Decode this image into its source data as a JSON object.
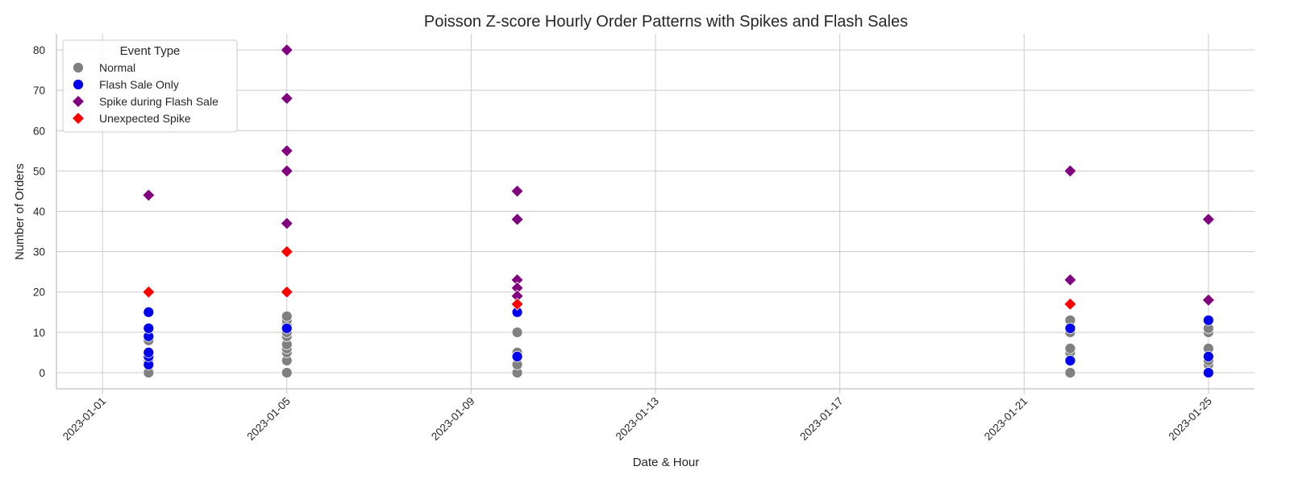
{
  "chart_data": {
    "type": "scatter",
    "title": "Poisson Z-score Hourly Order Patterns with Spikes and Flash Sales",
    "xlabel": "Date & Hour",
    "ylabel": "Number of Orders",
    "x_ticks": [
      "2023-01-01",
      "2023-01-05",
      "2023-01-09",
      "2023-01-13",
      "2023-01-17",
      "2023-01-21",
      "2023-01-25"
    ],
    "y_ticks": [
      0,
      10,
      20,
      30,
      40,
      50,
      60,
      70,
      80
    ],
    "xlim": [
      "2022-12-31",
      "2023-01-26"
    ],
    "ylim": [
      -4,
      84
    ],
    "grid": true,
    "legend": {
      "title": "Event Type",
      "placement": "top-left"
    },
    "series": [
      {
        "name": "Normal",
        "marker": "circle",
        "color": "#808080",
        "points": [
          {
            "x": "2023-01-02",
            "y": 0
          },
          {
            "x": "2023-01-02",
            "y": 3
          },
          {
            "x": "2023-01-02",
            "y": 8
          },
          {
            "x": "2023-01-05",
            "y": 0
          },
          {
            "x": "2023-01-05",
            "y": 3
          },
          {
            "x": "2023-01-05",
            "y": 5
          },
          {
            "x": "2023-01-05",
            "y": 6
          },
          {
            "x": "2023-01-05",
            "y": 7
          },
          {
            "x": "2023-01-05",
            "y": 9
          },
          {
            "x": "2023-01-05",
            "y": 10
          },
          {
            "x": "2023-01-05",
            "y": 12
          },
          {
            "x": "2023-01-05",
            "y": 13
          },
          {
            "x": "2023-01-05",
            "y": 14
          },
          {
            "x": "2023-01-10",
            "y": 0
          },
          {
            "x": "2023-01-10",
            "y": 2
          },
          {
            "x": "2023-01-10",
            "y": 4
          },
          {
            "x": "2023-01-10",
            "y": 5
          },
          {
            "x": "2023-01-10",
            "y": 10
          },
          {
            "x": "2023-01-22",
            "y": 0
          },
          {
            "x": "2023-01-22",
            "y": 5
          },
          {
            "x": "2023-01-22",
            "y": 6
          },
          {
            "x": "2023-01-22",
            "y": 10
          },
          {
            "x": "2023-01-22",
            "y": 13
          },
          {
            "x": "2023-01-25",
            "y": 2
          },
          {
            "x": "2023-01-25",
            "y": 3
          },
          {
            "x": "2023-01-25",
            "y": 6
          },
          {
            "x": "2023-01-25",
            "y": 10
          },
          {
            "x": "2023-01-25",
            "y": 11
          }
        ]
      },
      {
        "name": "Flash Sale Only",
        "marker": "circle",
        "color": "#0000ee",
        "points": [
          {
            "x": "2023-01-02",
            "y": 2
          },
          {
            "x": "2023-01-02",
            "y": 4
          },
          {
            "x": "2023-01-02",
            "y": 5
          },
          {
            "x": "2023-01-02",
            "y": 9
          },
          {
            "x": "2023-01-02",
            "y": 11
          },
          {
            "x": "2023-01-02",
            "y": 15
          },
          {
            "x": "2023-01-05",
            "y": 11
          },
          {
            "x": "2023-01-10",
            "y": 4
          },
          {
            "x": "2023-01-10",
            "y": 15
          },
          {
            "x": "2023-01-22",
            "y": 3
          },
          {
            "x": "2023-01-22",
            "y": 11
          },
          {
            "x": "2023-01-25",
            "y": 0
          },
          {
            "x": "2023-01-25",
            "y": 4
          },
          {
            "x": "2023-01-25",
            "y": 13
          }
        ]
      },
      {
        "name": "Spike during Flash Sale",
        "marker": "diamond",
        "color": "#800080",
        "points": [
          {
            "x": "2023-01-02",
            "y": 44
          },
          {
            "x": "2023-01-05",
            "y": 80
          },
          {
            "x": "2023-01-05",
            "y": 68
          },
          {
            "x": "2023-01-05",
            "y": 55
          },
          {
            "x": "2023-01-05",
            "y": 50
          },
          {
            "x": "2023-01-05",
            "y": 37
          },
          {
            "x": "2023-01-10",
            "y": 45
          },
          {
            "x": "2023-01-10",
            "y": 38
          },
          {
            "x": "2023-01-10",
            "y": 23
          },
          {
            "x": "2023-01-10",
            "y": 21
          },
          {
            "x": "2023-01-10",
            "y": 19
          },
          {
            "x": "2023-01-22",
            "y": 50
          },
          {
            "x": "2023-01-22",
            "y": 23
          },
          {
            "x": "2023-01-25",
            "y": 38
          },
          {
            "x": "2023-01-25",
            "y": 18
          }
        ]
      },
      {
        "name": "Unexpected Spike",
        "marker": "diamond",
        "color": "#ff0000",
        "points": [
          {
            "x": "2023-01-02",
            "y": 20
          },
          {
            "x": "2023-01-05",
            "y": 30
          },
          {
            "x": "2023-01-05",
            "y": 20
          },
          {
            "x": "2023-01-10",
            "y": 17
          },
          {
            "x": "2023-01-22",
            "y": 17
          }
        ]
      }
    ]
  }
}
